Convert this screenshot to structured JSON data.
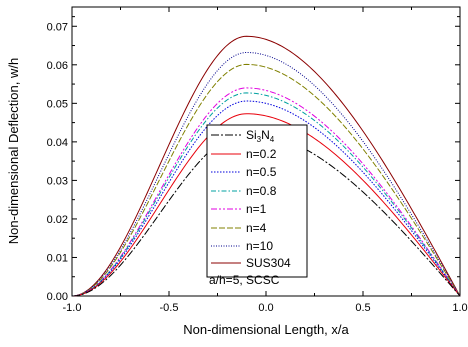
{
  "chart_data": {
    "type": "line",
    "xlabel": "Non-dimensional Length, x/a",
    "ylabel": "Non-dimensional Deflection, w/h",
    "xlim": [
      -1.0,
      1.0
    ],
    "ylim": [
      0.0,
      0.075
    ],
    "x_ticks": [
      "-1.0",
      "-0.5",
      "0.0",
      "0.5",
      "1.0"
    ],
    "y_ticks": [
      "0.00",
      "0.01",
      "0.02",
      "0.03",
      "0.04",
      "0.05",
      "0.06",
      "0.07"
    ],
    "grid": false,
    "legend_position": "center",
    "annotation": "a/h=5, SCSC",
    "peak_x": -0.1,
    "series": [
      {
        "name_main": "Si",
        "name_sub1": "3",
        "name_mid": "N",
        "name_sub2": "4",
        "peak": 0.0425,
        "color": "#000000",
        "dash": "8 2 2 2"
      },
      {
        "name": "n=0.2",
        "peak": 0.0473,
        "color": "#e8000b",
        "dash": ""
      },
      {
        "name": "n=0.5",
        "peak": 0.0506,
        "color": "#0000dd",
        "dash": "1.5 1.5"
      },
      {
        "name": "n=0.8",
        "peak": 0.0527,
        "color": "#00a0a0",
        "dash": "5 2 1.5 2"
      },
      {
        "name": "n=1",
        "peak": 0.054,
        "color": "#e000e0",
        "dash": "6 2 2 2 2 2"
      },
      {
        "name": "n=4",
        "peak": 0.0601,
        "color": "#808000",
        "dash": "6 2"
      },
      {
        "name": "n=10",
        "peak": 0.0632,
        "color": "#00008b",
        "dash": "1 1.5"
      },
      {
        "name": "SUS304",
        "peak": 0.0674,
        "color": "#8b0000",
        "dash": ""
      }
    ]
  }
}
